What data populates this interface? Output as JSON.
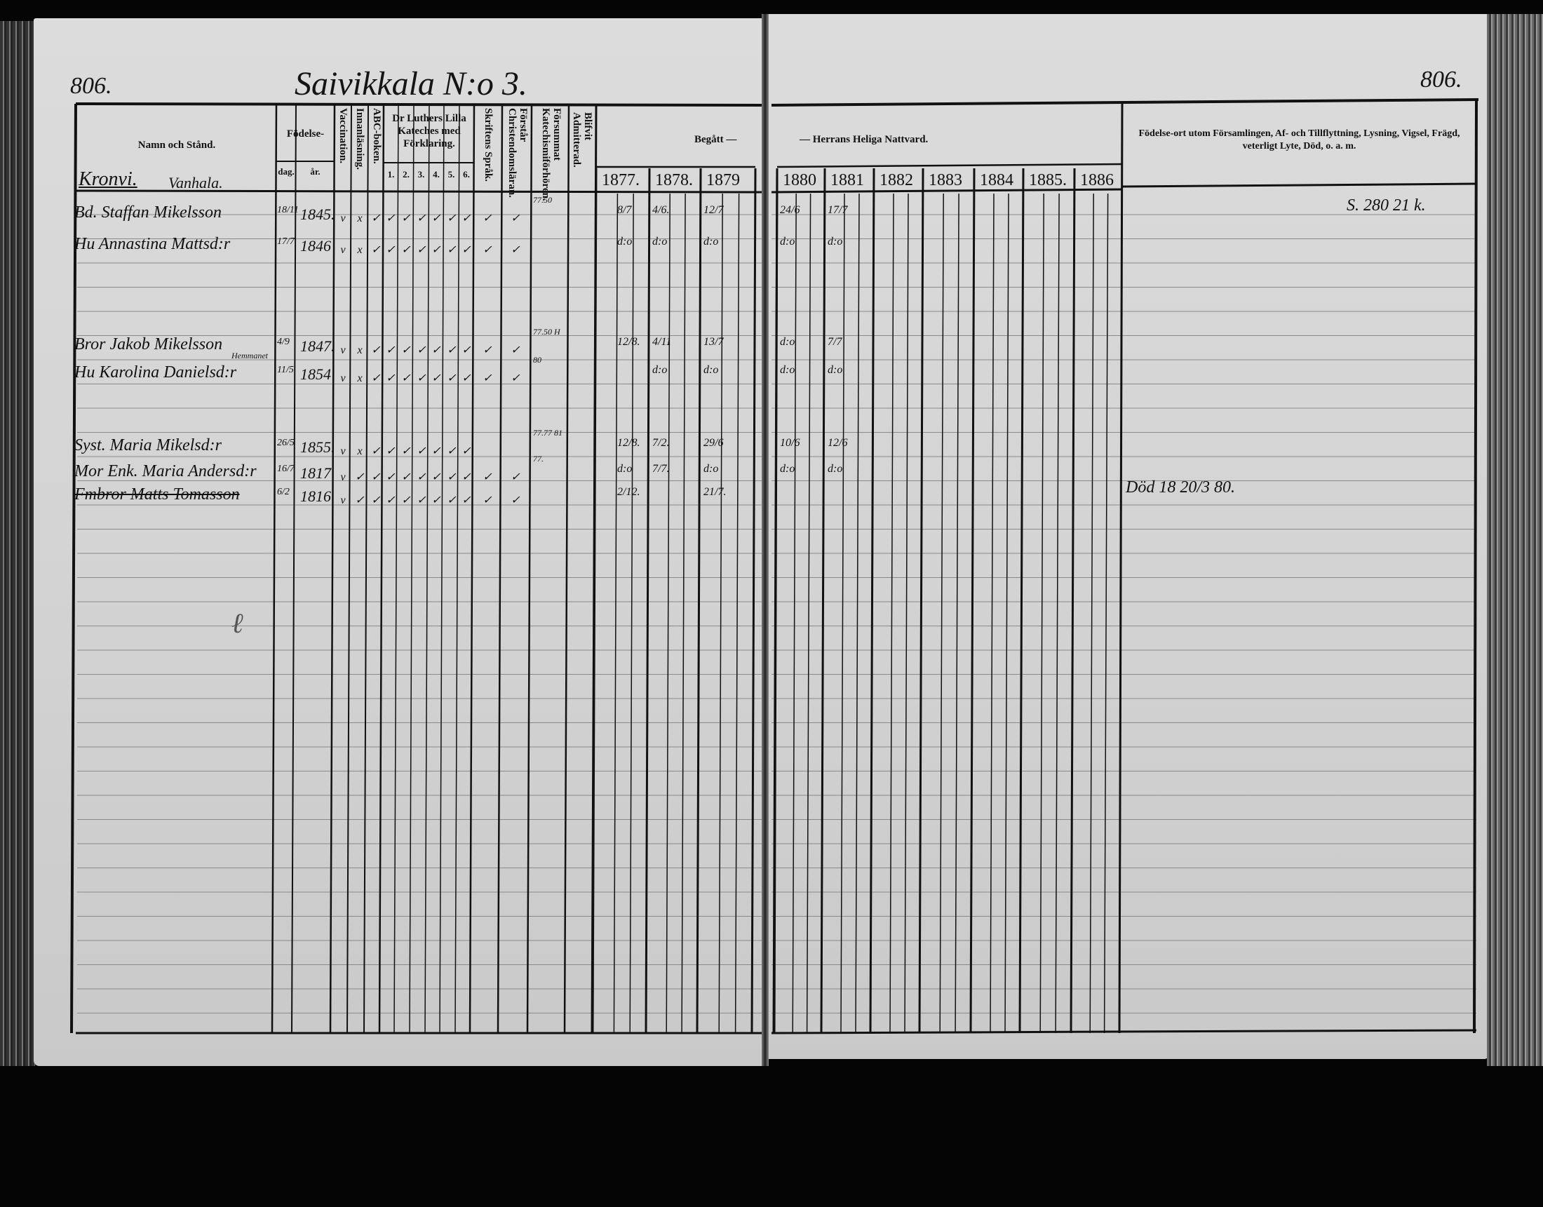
{
  "page_number_left": "806.",
  "page_number_right": "806.",
  "village_title": "Saivikkala N:o 3.",
  "headers": {
    "name": "Namn och Stånd.",
    "birth": "Födelse-",
    "birth_day": "dag.",
    "birth_year": "år.",
    "vaccination": "Vaccination.",
    "reading": "Innanläsning.",
    "abc": "ABC-boken.",
    "luther": "Dr Luthers Lilla Kateches med Förklaring.",
    "luther_parts": [
      "1.",
      "2.",
      "3.",
      "4.",
      "5.",
      "6."
    ],
    "scripture": "Skriftens Språk.",
    "christian": "Förstår Christendomsläran.",
    "missed": "Försummat Katechismiförhören.",
    "admitted": "Blifvit Admitterad.",
    "communion_left": "Begått —",
    "communion_right": "— Herrans Heliga Nattvard.",
    "remarks": "Födelse-ort utom Församlingen, Af- och Tillflyttning, Lysning, Vigsel, Frägd, veterligt Lyte, Död, o. a. m."
  },
  "years_left": [
    "1877.",
    "1878.",
    "1879"
  ],
  "years_right": [
    "1880",
    "1881",
    "1882",
    "1883",
    "1884",
    "1885.",
    "1886"
  ],
  "household": {
    "place": "Kronvi.",
    "farm": "Vanhala."
  },
  "persons": [
    {
      "name": "Bd. Staffan Mikelsson",
      "day": "18/11",
      "year": "1845.",
      "marks": [
        "v",
        "x",
        "✓",
        "✓",
        "✓",
        "✓",
        "✓",
        "✓",
        "✓",
        "✓",
        "✓"
      ],
      "missed": "77.50",
      "c1877": "8/7",
      "c1878": "4/6.",
      "c1879": "12/7",
      "c1880": "24/6",
      "c1881": "17/7",
      "remark": "S. 280 21 k.",
      "struck": false
    },
    {
      "name": "Hu Annastina Mattsd:r",
      "day": "17/7",
      "year": "1846",
      "marks": [
        "v",
        "x",
        "✓",
        "✓",
        "✓",
        "✓",
        "✓",
        "✓",
        "✓",
        "✓",
        "✓"
      ],
      "missed": "",
      "c1877": "d:o",
      "c1878": "d:o",
      "c1879": "d:o",
      "c1880": "d:o",
      "c1881": "d:o",
      "remark": "",
      "struck": false
    },
    {
      "name": "Bror Jakob Mikelsson",
      "note": "Hemmanet",
      "day": "4/9",
      "year": "1847.",
      "marks": [
        "v",
        "x",
        "✓",
        "✓",
        "✓",
        "✓",
        "✓",
        "✓",
        "✓",
        "✓",
        "✓"
      ],
      "missed": "77.50 H",
      "c1877": "12/8.",
      "c1878": "4/11",
      "c1879": "13/7",
      "c1880": "d:o",
      "c1881": "7/7",
      "remark": "",
      "struck": false
    },
    {
      "name": "Hu Karolina Danielsd:r",
      "day": "11/5",
      "year": "1854",
      "marks": [
        "v",
        "x",
        "✓",
        "✓",
        "✓",
        "✓",
        "✓",
        "✓",
        "✓",
        "✓",
        "✓"
      ],
      "missed": "80",
      "c1877": "",
      "c1878": "d:o",
      "c1879": "d:o",
      "c1880": "d:o",
      "c1881": "d:o",
      "remark": "",
      "struck": false
    },
    {
      "name": "Syst. Maria Mikelsd:r",
      "day": "26/5",
      "year": "1855.",
      "marks": [
        "v",
        "x",
        "✓",
        "✓",
        "✓",
        "✓",
        "✓",
        "✓",
        "✓",
        "",
        ""
      ],
      "missed": "77.77 81",
      "c1877": "12/8.",
      "c1878": "7/2.",
      "c1879": "29/6",
      "c1880": "10/6",
      "c1881": "12/6",
      "remark": "",
      "struck": false
    },
    {
      "name": "Mor Enk. Maria Andersd:r",
      "day": "16/7",
      "year": "1817",
      "marks": [
        "v",
        "✓",
        "✓",
        "✓",
        "✓",
        "✓",
        "✓",
        "✓",
        "✓",
        "✓",
        "✓"
      ],
      "missed": "77.",
      "c1877": "d:o",
      "c1878": "7/7.",
      "c1879": "d:o",
      "c1880": "d:o",
      "c1881": "d:o",
      "remark": "",
      "struck": false
    },
    {
      "name": "Fmbror Matts Tomasson",
      "day": "6/2",
      "year": "1816",
      "marks": [
        "v",
        "✓",
        "✓",
        "✓",
        "✓",
        "✓",
        "✓",
        "✓",
        "✓",
        "✓",
        "✓"
      ],
      "missed": "",
      "c1877": "2/12.",
      "c1878": "",
      "c1879": "21/7.",
      "c1880": "",
      "c1881": "",
      "remark": "Död 18 20/3 80.",
      "struck": true
    }
  ]
}
